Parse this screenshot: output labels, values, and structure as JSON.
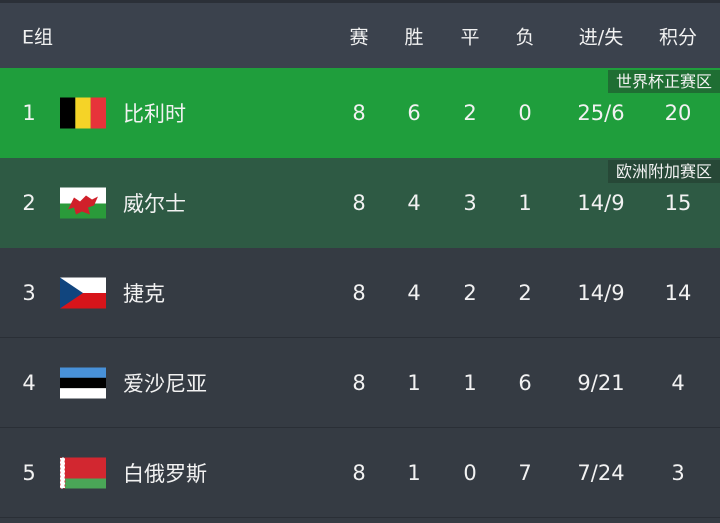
{
  "group_label": "E组",
  "columns": [
    "赛",
    "胜",
    "平",
    "负",
    "进/失",
    "积分"
  ],
  "colors": {
    "qualify": "#1f9e3c",
    "playoff": "#2e5a44",
    "row": "#353b43",
    "header": "#3b424d"
  },
  "rows": [
    {
      "rank": "1",
      "flag": "belgium-flag",
      "name": "比利时",
      "p": "8",
      "w": "6",
      "d": "2",
      "l": "0",
      "gf_ga": "25/6",
      "pts": "20",
      "badge": "世界杯正赛区"
    },
    {
      "rank": "2",
      "flag": "wales-flag",
      "name": "威尔士",
      "p": "8",
      "w": "4",
      "d": "3",
      "l": "1",
      "gf_ga": "14/9",
      "pts": "15",
      "badge": "欧洲附加赛区"
    },
    {
      "rank": "3",
      "flag": "czech-flag",
      "name": "捷克",
      "p": "8",
      "w": "4",
      "d": "2",
      "l": "2",
      "gf_ga": "14/9",
      "pts": "14"
    },
    {
      "rank": "4",
      "flag": "estonia-flag",
      "name": "爱沙尼亚",
      "p": "8",
      "w": "1",
      "d": "1",
      "l": "6",
      "gf_ga": "9/21",
      "pts": "4"
    },
    {
      "rank": "5",
      "flag": "belarus-flag",
      "name": "白俄罗斯",
      "p": "8",
      "w": "1",
      "d": "0",
      "l": "7",
      "gf_ga": "7/24",
      "pts": "3"
    }
  ]
}
